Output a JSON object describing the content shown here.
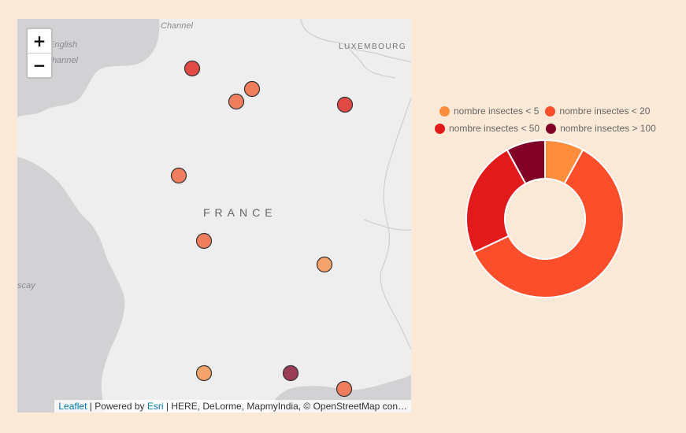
{
  "map": {
    "zoom_in_label": "+",
    "zoom_out_label": "−",
    "country_label": "FRANCE",
    "sea_labels": {
      "channel": "Channel",
      "english": "English",
      "english_channel": "Channel",
      "biscay": "scay"
    },
    "neighbor_labels": {
      "luxembourg": "LUXEMBOURG"
    },
    "attribution": {
      "leaflet_link": "Leaflet",
      "powered_by": " | Powered by ",
      "esri_link": "Esri",
      "rest": " | HERE, DeLorme, MapmyIndia, © OpenStreetMap con…"
    },
    "marker_category_colors": [
      "#f4a36a",
      "#ee7e5e",
      "#e04a45",
      "#8c1f3a"
    ]
  },
  "legend": {
    "items": [
      {
        "label": "nombre insectes < 5",
        "color": "#fd8d3c"
      },
      {
        "label": "nombre insectes < 20",
        "color": "#fc4e2a"
      },
      {
        "label": "nombre insectes < 50",
        "color": "#e31a1c"
      },
      {
        "label": "nombre insectes > 100",
        "color": "#800026"
      }
    ]
  },
  "chart_data": {
    "type": "pie",
    "donut": true,
    "categories": [
      "nombre insectes < 5",
      "nombre insectes < 20",
      "nombre insectes < 50",
      "nombre insectes > 100"
    ],
    "values": [
      8,
      60,
      24,
      8
    ],
    "colors": [
      "#fd8d3c",
      "#fc4e2a",
      "#e31a1c",
      "#800026"
    ],
    "legend_position": "top"
  }
}
